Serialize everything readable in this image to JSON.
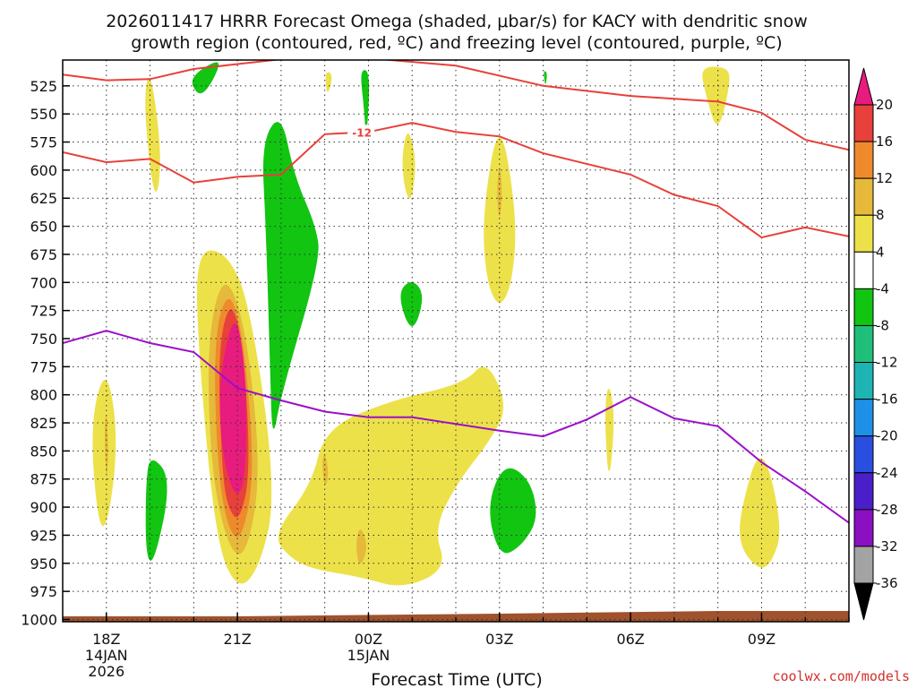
{
  "chart_data": {
    "type": "heatmap",
    "title_line1": "2026011417 HRRR Forecast Omega (shaded, μbar/s) for KACY with dendritic snow",
    "title_line2": "growth region (contoured, red, ºC) and freezing level (contoured, purple, ºC)",
    "xlabel": "Forecast Time (UTC)",
    "credit": "coolwx.com/models",
    "x_range_hours": [
      -1,
      17
    ],
    "y_range_hpa": [
      1002,
      502
    ],
    "x_ticks": [
      {
        "hour": 0,
        "label": "18Z",
        "sub1": "14JAN",
        "sub2": "2026"
      },
      {
        "hour": 3,
        "label": "21Z",
        "sub1": "",
        "sub2": ""
      },
      {
        "hour": 6,
        "label": "00Z",
        "sub1": "15JAN",
        "sub2": ""
      },
      {
        "hour": 9,
        "label": "03Z",
        "sub1": "",
        "sub2": ""
      },
      {
        "hour": 12,
        "label": "06Z",
        "sub1": "",
        "sub2": ""
      },
      {
        "hour": 15,
        "label": "09Z",
        "sub1": "",
        "sub2": ""
      }
    ],
    "y_ticks": [
      "525",
      "550",
      "575",
      "600",
      "625",
      "650",
      "675",
      "700",
      "725",
      "750",
      "775",
      "800",
      "825",
      "850",
      "875",
      "900",
      "925",
      "950",
      "975",
      "1000"
    ],
    "colorbar": {
      "labels": [
        "20",
        "16",
        "12",
        "8",
        "4",
        "-4",
        "-8",
        "-12",
        "-16",
        "-20",
        "-24",
        "-28",
        "-32",
        "-36"
      ],
      "colors": [
        "#e8403a",
        "#ee8a2c",
        "#e6b93a",
        "#ede14a",
        "#ffffff",
        "#11c511",
        "#1fbf7a",
        "#1eb4b4",
        "#1f90e8",
        "#2a4fe0",
        "#4a1fc9",
        "#8a10c2",
        "#a3a3a3"
      ],
      "top_color": "#e81b7e",
      "bottom_color": "#000000"
    },
    "contour_label": "-12",
    "dgz_top_line": [
      [
        -1,
        515
      ],
      [
        0,
        520
      ],
      [
        1,
        519
      ],
      [
        2,
        510
      ],
      [
        5,
        497
      ],
      [
        8,
        507
      ],
      [
        10,
        525
      ],
      [
        12,
        534
      ],
      [
        14,
        539
      ],
      [
        15,
        549
      ],
      [
        16,
        573
      ],
      [
        17,
        582
      ]
    ],
    "dgz_bottom_line": [
      [
        -1,
        584
      ],
      [
        0,
        593
      ],
      [
        1,
        590
      ],
      [
        2,
        611
      ],
      [
        3,
        606
      ],
      [
        4,
        604
      ],
      [
        5,
        568
      ],
      [
        6,
        566
      ],
      [
        7,
        558
      ],
      [
        8,
        566
      ],
      [
        9,
        570
      ],
      [
        10,
        585
      ],
      [
        12,
        604
      ],
      [
        13,
        622
      ],
      [
        14,
        632
      ],
      [
        15,
        660
      ],
      [
        16,
        651
      ],
      [
        17,
        659
      ]
    ],
    "freezing_level": [
      [
        -1,
        754
      ],
      [
        0,
        743
      ],
      [
        1,
        754
      ],
      [
        2,
        762
      ],
      [
        3,
        794
      ],
      [
        4,
        805
      ],
      [
        5,
        815
      ],
      [
        6,
        820
      ],
      [
        7,
        820
      ],
      [
        8,
        826
      ],
      [
        9,
        832
      ],
      [
        10,
        837
      ],
      [
        11,
        822
      ],
      [
        12,
        802
      ],
      [
        13,
        821
      ],
      [
        14,
        828
      ],
      [
        15,
        860
      ],
      [
        16,
        886
      ],
      [
        17,
        914
      ]
    ],
    "omega_regions": [
      {
        "color": "#ede14a",
        "pts": [
          [
            -0.4,
            830
          ],
          [
            0.0,
            770
          ],
          [
            0.3,
            845
          ],
          [
            -0.1,
            943
          ]
        ]
      },
      {
        "color": "#e6b93a",
        "pts": [
          [
            -0.05,
            830
          ],
          [
            0.0,
            812
          ],
          [
            0.05,
            852
          ],
          [
            0.0,
            880
          ]
        ]
      },
      {
        "color": "#11c511",
        "pts": [
          [
            0.9,
            880
          ],
          [
            1.0,
            852
          ],
          [
            1.5,
            875
          ],
          [
            1.1,
            950
          ],
          [
            0.9,
            945
          ]
        ]
      },
      {
        "color": "#ede14a",
        "pts": [
          [
            0.85,
            537
          ],
          [
            1.0,
            508
          ],
          [
            1.25,
            578
          ],
          [
            1.2,
            620
          ],
          [
            1.05,
            618
          ]
        ]
      },
      {
        "color": "#ede14a",
        "pts": [
          [
            2.1,
            760
          ],
          [
            2.05,
            671
          ],
          [
            2.75,
            672
          ],
          [
            3.3,
            720
          ],
          [
            3.9,
            888
          ],
          [
            3.5,
            955
          ],
          [
            3.0,
            975
          ],
          [
            2.5,
            930
          ]
        ]
      },
      {
        "color": "#e6b93a",
        "pts": [
          [
            2.3,
            750
          ],
          [
            2.7,
            688
          ],
          [
            3.2,
            740
          ],
          [
            3.55,
            870
          ],
          [
            3.2,
            945
          ],
          [
            2.8,
            938
          ],
          [
            2.4,
            870
          ]
        ]
      },
      {
        "color": "#ee8a2c",
        "pts": [
          [
            2.45,
            750
          ],
          [
            2.8,
            703
          ],
          [
            3.15,
            750
          ],
          [
            3.4,
            870
          ],
          [
            3.1,
            930
          ],
          [
            2.8,
            922
          ],
          [
            2.55,
            870
          ]
        ]
      },
      {
        "color": "#e8403a",
        "pts": [
          [
            2.55,
            760
          ],
          [
            2.85,
            712
          ],
          [
            3.15,
            760
          ],
          [
            3.3,
            870
          ],
          [
            3.05,
            913
          ],
          [
            2.8,
            903
          ],
          [
            2.65,
            870
          ]
        ]
      },
      {
        "color": "#e81b7e",
        "pts": [
          [
            2.6,
            780
          ],
          [
            2.95,
            722
          ],
          [
            3.2,
            780
          ],
          [
            3.2,
            870
          ],
          [
            3.0,
            894
          ],
          [
            2.75,
            870
          ],
          [
            2.6,
            830
          ]
        ]
      },
      {
        "color": "#11c511",
        "pts": [
          [
            3.55,
            575
          ],
          [
            4.0,
            548
          ],
          [
            4.3,
            605
          ],
          [
            4.8,
            650
          ],
          [
            4.9,
            680
          ],
          [
            4.0,
            800
          ],
          [
            3.8,
            843
          ],
          [
            3.75,
            780
          ],
          [
            3.65,
            650
          ]
        ]
      },
      {
        "color": "#11c511",
        "pts": [
          [
            1.9,
            522
          ],
          [
            2.15,
            510
          ],
          [
            2.7,
            500
          ],
          [
            2.2,
            537
          ]
        ]
      },
      {
        "color": "#ede14a",
        "pts": [
          [
            5.0,
            511
          ],
          [
            5.2,
            515
          ],
          [
            5.05,
            536
          ]
        ]
      },
      {
        "color": "#11c511",
        "pts": [
          [
            5.8,
            510
          ],
          [
            6.05,
            512
          ],
          [
            5.95,
            578
          ],
          [
            5.9,
            545
          ]
        ]
      },
      {
        "color": "#ede14a",
        "pts": [
          [
            6.75,
            590
          ],
          [
            6.9,
            560
          ],
          [
            7.1,
            590
          ],
          [
            7.0,
            627
          ],
          [
            6.85,
            622
          ]
        ]
      },
      {
        "color": "#11c511",
        "pts": [
          [
            6.65,
            710
          ],
          [
            7.0,
            696
          ],
          [
            7.3,
            712
          ],
          [
            7.0,
            748
          ]
        ]
      },
      {
        "color": "#ede14a",
        "pts": [
          [
            8.6,
            640
          ],
          [
            9.0,
            548
          ],
          [
            9.4,
            640
          ],
          [
            9.3,
            700
          ],
          [
            9.0,
            724
          ],
          [
            8.7,
            700
          ]
        ]
      },
      {
        "color": "#e6b93a",
        "pts": [
          [
            8.93,
            620
          ],
          [
            9.0,
            590
          ],
          [
            9.07,
            620
          ],
          [
            9.0,
            648
          ]
        ]
      },
      {
        "color": "#ede14a",
        "pts": [
          [
            3.8,
            925
          ],
          [
            4.7,
            880
          ],
          [
            5.0,
            830
          ],
          [
            6.5,
            805
          ],
          [
            8.2,
            790
          ],
          [
            8.7,
            768
          ],
          [
            9.2,
            810
          ],
          [
            8.8,
            840
          ],
          [
            8.0,
            880
          ],
          [
            7.5,
            920
          ],
          [
            7.8,
            955
          ],
          [
            6.8,
            973
          ],
          [
            5.8,
            962
          ],
          [
            4.7,
            955
          ],
          [
            4.2,
            945
          ]
        ]
      },
      {
        "color": "#e6b93a",
        "pts": [
          [
            5.7,
            935
          ],
          [
            5.8,
            915
          ],
          [
            6.0,
            935
          ],
          [
            5.8,
            955
          ]
        ]
      },
      {
        "color": "#e6b93a",
        "pts": [
          [
            4.93,
            860
          ],
          [
            5.0,
            850
          ],
          [
            5.1,
            870
          ],
          [
            5.0,
            885
          ]
        ]
      },
      {
        "color": "#11c511",
        "pts": [
          [
            8.7,
            900
          ],
          [
            9.1,
            860
          ],
          [
            9.7,
            875
          ],
          [
            9.9,
            910
          ],
          [
            9.5,
            935
          ],
          [
            9.0,
            945
          ]
        ]
      },
      {
        "color": "#ede14a",
        "pts": [
          [
            11.4,
            815
          ],
          [
            11.5,
            787
          ],
          [
            11.65,
            820
          ],
          [
            11.5,
            885
          ]
        ]
      },
      {
        "color": "#11c511",
        "pts": [
          [
            10.0,
            511
          ],
          [
            10.1,
            513
          ],
          [
            10.05,
            527
          ]
        ]
      },
      {
        "color": "#ede14a",
        "pts": [
          [
            13.6,
            508
          ],
          [
            14.2,
            508
          ],
          [
            14.3,
            520
          ],
          [
            14.0,
            570
          ],
          [
            13.7,
            530
          ]
        ]
      },
      {
        "color": "#ede14a",
        "pts": [
          [
            14.5,
            905
          ],
          [
            15.0,
            838
          ],
          [
            15.5,
            920
          ],
          [
            15.2,
            952
          ],
          [
            14.9,
            955
          ],
          [
            14.5,
            935
          ]
        ]
      }
    ]
  }
}
